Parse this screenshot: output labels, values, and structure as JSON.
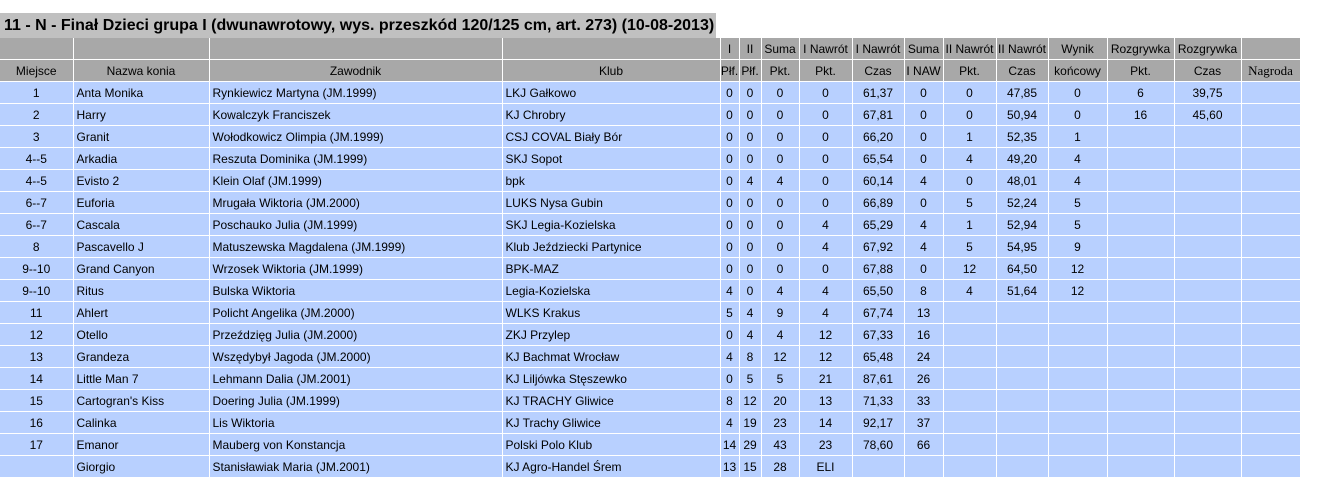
{
  "title": "11 - N - Finał Dzieci grupa I (dwunawrotowy, wys. przeszkód 120/125 cm, art. 273) (10-08-2013)",
  "header_row1": [
    "",
    "",
    "",
    "",
    "I",
    "II",
    "Suma",
    "I Nawrót",
    "I Nawrót",
    "Suma",
    "II Nawrót",
    "II Nawrót",
    "Wynik",
    "Rozgrywka",
    "Rozgrywka",
    ""
  ],
  "header_row2": [
    "Miejsce",
    "Nazwa konia",
    "Zawodnik",
    "Klub",
    "Płf.",
    "Płf.",
    "Pkt.",
    "Pkt.",
    "Czas",
    "I NAW",
    "Pkt.",
    "Czas",
    "końcowy",
    "Pkt.",
    "Czas",
    "Nagroda"
  ],
  "rows": [
    [
      "1",
      "Anta Monika",
      "Rynkiewicz Martyna (JM.1999)",
      "LKJ Gałkowo",
      "0",
      "0",
      "0",
      "0",
      "61,37",
      "0",
      "0",
      "47,85",
      "0",
      "6",
      "39,75",
      ""
    ],
    [
      "2",
      "Harry",
      "Kowalczyk Franciszek",
      "KJ Chrobry",
      "0",
      "0",
      "0",
      "0",
      "67,81",
      "0",
      "0",
      "50,94",
      "0",
      "16",
      "45,60",
      ""
    ],
    [
      "3",
      "Granit",
      "Wołodkowicz Olimpia (JM.1999)",
      "CSJ COVAL Biały Bór",
      "0",
      "0",
      "0",
      "0",
      "66,20",
      "0",
      "1",
      "52,35",
      "1",
      "",
      "",
      ""
    ],
    [
      "4--5",
      "Arkadia",
      "Reszuta Dominika (JM.1999)",
      "SKJ Sopot",
      "0",
      "0",
      "0",
      "0",
      "65,54",
      "0",
      "4",
      "49,20",
      "4",
      "",
      "",
      ""
    ],
    [
      "4--5",
      "Evisto 2",
      "Klein Olaf (JM.1999)",
      "bpk",
      "0",
      "4",
      "4",
      "0",
      "60,14",
      "4",
      "0",
      "48,01",
      "4",
      "",
      "",
      ""
    ],
    [
      "6--7",
      "Euforia",
      "Mrugała Wiktoria (JM.2000)",
      "LUKS Nysa Gubin",
      "0",
      "0",
      "0",
      "0",
      "66,89",
      "0",
      "5",
      "52,24",
      "5",
      "",
      "",
      ""
    ],
    [
      "6--7",
      "Cascala",
      "Poschauko Julia (JM.1999)",
      "SKJ Legia-Kozielska",
      "0",
      "0",
      "0",
      "4",
      "65,29",
      "4",
      "1",
      "52,94",
      "5",
      "",
      "",
      ""
    ],
    [
      "8",
      "Pascavello J",
      "Matuszewska Magdalena (JM.1999)",
      "Klub Jeździecki Partynice",
      "0",
      "0",
      "0",
      "4",
      "67,92",
      "4",
      "5",
      "54,95",
      "9",
      "",
      "",
      ""
    ],
    [
      "9--10",
      "Grand Canyon",
      "Wrzosek Wiktoria (JM.1999)",
      "BPK-MAZ",
      "0",
      "0",
      "0",
      "0",
      "67,88",
      "0",
      "12",
      "64,50",
      "12",
      "",
      "",
      ""
    ],
    [
      "9--10",
      "Ritus",
      "Bulska Wiktoria",
      "Legia-Kozielska",
      "4",
      "0",
      "4",
      "4",
      "65,50",
      "8",
      "4",
      "51,64",
      "12",
      "",
      "",
      ""
    ],
    [
      "11",
      "Ahlert",
      "Policht Angelika (JM.2000)",
      "WLKS Krakus",
      "5",
      "4",
      "9",
      "4",
      "67,74",
      "13",
      "",
      "",
      "",
      "",
      "",
      ""
    ],
    [
      "12",
      "Otello",
      "Przeździęg Julia (JM.2000)",
      "ZKJ Przylep",
      "0",
      "4",
      "4",
      "12",
      "67,33",
      "16",
      "",
      "",
      "",
      "",
      "",
      ""
    ],
    [
      "13",
      "Grandeza",
      "Wszędybył Jagoda (JM.2000)",
      "KJ Bachmat Wrocław",
      "4",
      "8",
      "12",
      "12",
      "65,48",
      "24",
      "",
      "",
      "",
      "",
      "",
      ""
    ],
    [
      "14",
      "Little Man 7",
      "Lehmann Dalia (JM.2001)",
      "KJ Liljówka Stęszewko",
      "0",
      "5",
      "5",
      "21",
      "87,61",
      "26",
      "",
      "",
      "",
      "",
      "",
      ""
    ],
    [
      "15",
      "Cartogran's Kiss",
      "Doering Julia (JM.1999)",
      "KJ TRACHY Gliwice",
      "8",
      "12",
      "20",
      "13",
      "71,33",
      "33",
      "",
      "",
      "",
      "",
      "",
      ""
    ],
    [
      "16",
      "Calinka",
      "Lis Wiktoria",
      "KJ Trachy Gliwice",
      "4",
      "19",
      "23",
      "14",
      "92,17",
      "37",
      "",
      "",
      "",
      "",
      "",
      ""
    ],
    [
      "17",
      "Emanor",
      "Mauberg von Konstancja",
      "Polski Polo Klub",
      "14",
      "29",
      "43",
      "23",
      "78,60",
      "66",
      "",
      "",
      "",
      "",
      "",
      ""
    ],
    [
      "",
      "Giorgio",
      "Stanisławiak Maria (JM.2001)",
      "KJ Agro-Handel Śrem",
      "13",
      "15",
      "28",
      "ELI",
      "",
      "",
      "",
      "",
      "",
      "",
      "",
      ""
    ]
  ],
  "colors": {
    "title_bg": "#c0c0c0",
    "header_bg": "#a8a8a8",
    "row_bg": "#b8d0ff",
    "border": "#ffffff"
  }
}
